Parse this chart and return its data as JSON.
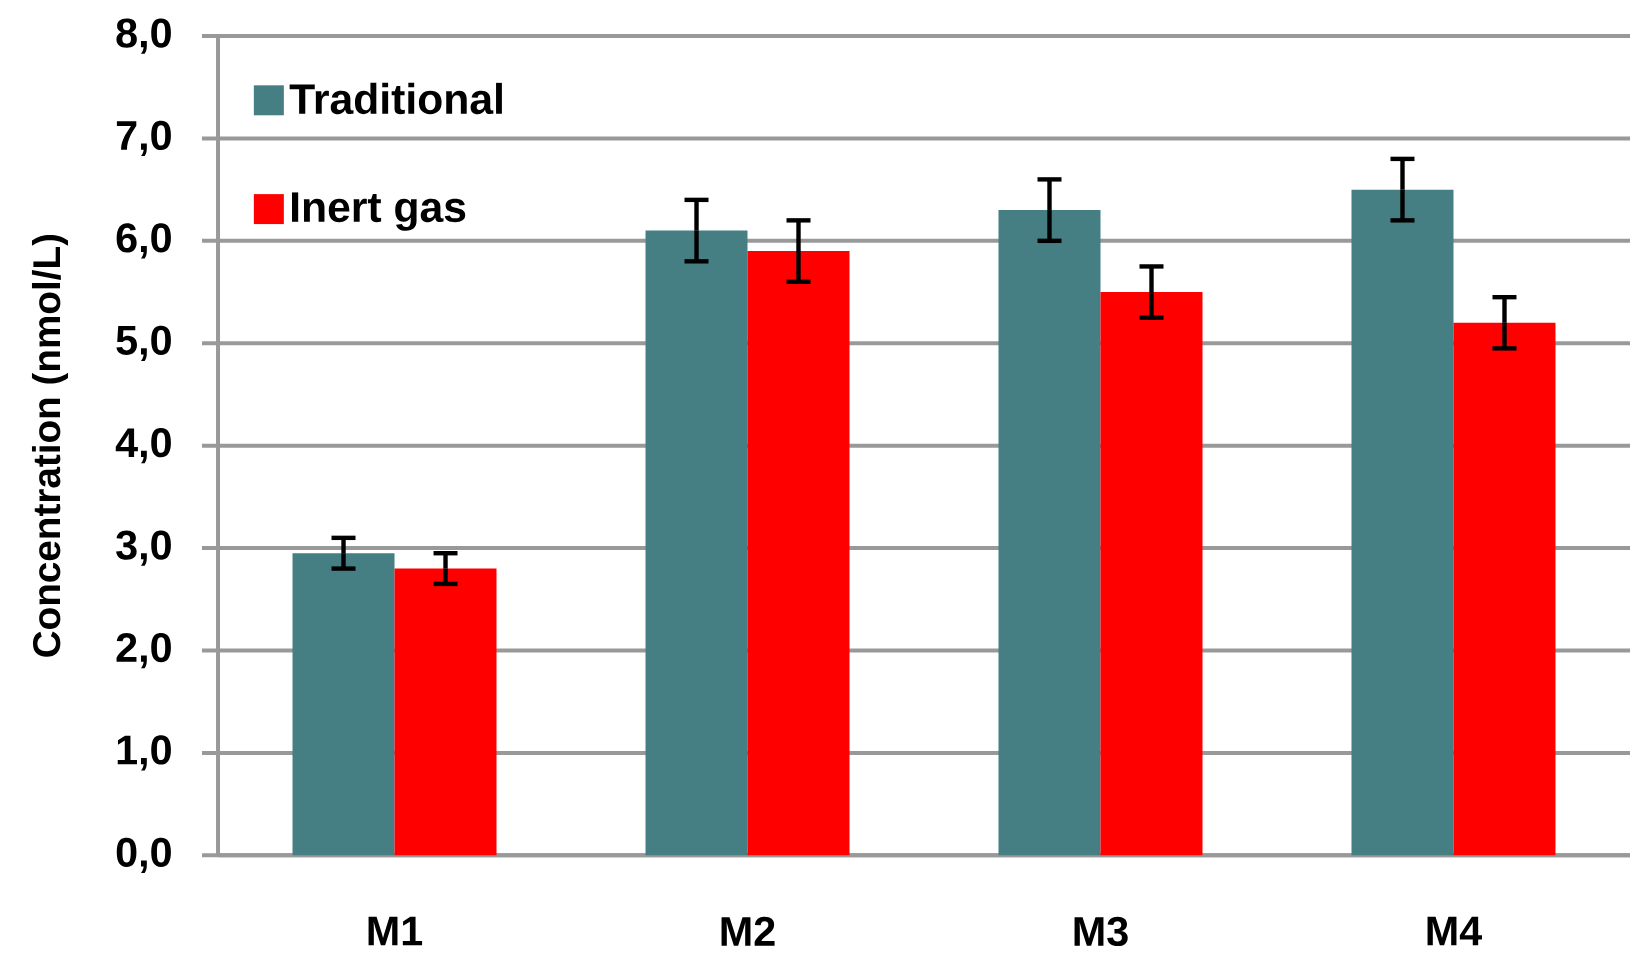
{
  "chart_data": {
    "type": "bar",
    "ylabel": "Concentration (nmol/L)",
    "categories": [
      "M1",
      "M2",
      "M3",
      "M4"
    ],
    "series": [
      {
        "name": "Traditional",
        "color": "#457e83",
        "values": [
          2.95,
          6.1,
          6.3,
          6.5
        ],
        "errors": [
          0.15,
          0.3,
          0.3,
          0.3
        ]
      },
      {
        "name": "Inert gas",
        "color": "#ff0000",
        "values": [
          2.8,
          5.9,
          5.5,
          5.2
        ],
        "errors": [
          0.15,
          0.3,
          0.25,
          0.25
        ]
      }
    ],
    "ylim": [
      0,
      8
    ],
    "yticks": [
      {
        "value": 0,
        "label": "0,0"
      },
      {
        "value": 1,
        "label": "1,0"
      },
      {
        "value": 2,
        "label": "2,0"
      },
      {
        "value": 3,
        "label": "3,0"
      },
      {
        "value": 4,
        "label": "4,0"
      },
      {
        "value": 5,
        "label": "5,0"
      },
      {
        "value": 6,
        "label": "6,0"
      },
      {
        "value": 7,
        "label": "7,0"
      },
      {
        "value": 8,
        "label": "8,0"
      }
    ],
    "grid": "y",
    "legend": "top left"
  }
}
